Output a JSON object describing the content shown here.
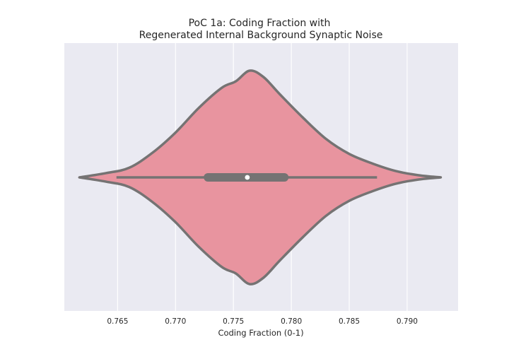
{
  "chart_data": {
    "type": "violin",
    "title_line1": "PoC 1a: Coding Fraction with",
    "title_line2": "Regenerated Internal Background Synaptic Noise",
    "xlabel": "Coding Fraction (0-1)",
    "ylabel": "",
    "xlim": [
      0.7604,
      0.7944
    ],
    "xticks": [
      {
        "value": 0.765,
        "label": "0.765"
      },
      {
        "value": 0.77,
        "label": "0.770"
      },
      {
        "value": 0.775,
        "label": "0.775"
      },
      {
        "value": 0.78,
        "label": "0.780"
      },
      {
        "value": 0.785,
        "label": "0.785"
      },
      {
        "value": 0.79,
        "label": "0.790"
      }
    ],
    "grid": true,
    "orientation": "horizontal",
    "summary": {
      "whisker_low": 0.7649,
      "q1": 0.7728,
      "median": 0.7762,
      "q3": 0.7794,
      "whisker_high": 0.7874
    },
    "density_profile": [
      {
        "x": 0.7617,
        "h": 0.0
      },
      {
        "x": 0.764,
        "h": 0.04
      },
      {
        "x": 0.766,
        "h": 0.09
      },
      {
        "x": 0.768,
        "h": 0.23
      },
      {
        "x": 0.77,
        "h": 0.42
      },
      {
        "x": 0.772,
        "h": 0.65
      },
      {
        "x": 0.774,
        "h": 0.84
      },
      {
        "x": 0.7752,
        "h": 0.9
      },
      {
        "x": 0.7764,
        "h": 1.0
      },
      {
        "x": 0.7776,
        "h": 0.94
      },
      {
        "x": 0.779,
        "h": 0.78
      },
      {
        "x": 0.781,
        "h": 0.56
      },
      {
        "x": 0.783,
        "h": 0.36
      },
      {
        "x": 0.785,
        "h": 0.22
      },
      {
        "x": 0.787,
        "h": 0.13
      },
      {
        "x": 0.789,
        "h": 0.06
      },
      {
        "x": 0.791,
        "h": 0.02
      },
      {
        "x": 0.7929,
        "h": 0.0
      }
    ],
    "colors": {
      "background": "#eaeaf2",
      "grid": "#ffffff",
      "fill": "#e8949f",
      "outline": "#757373",
      "median_dot": "#ffffff",
      "text": "#262626"
    }
  }
}
